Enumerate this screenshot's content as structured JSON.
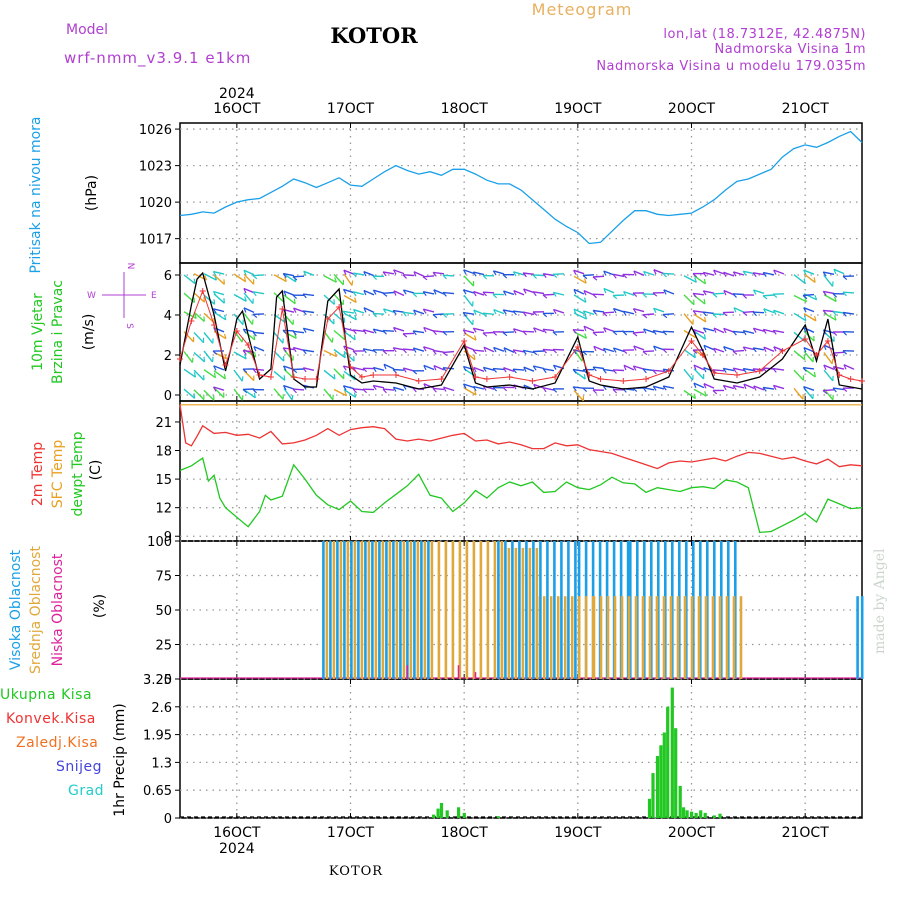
{
  "header": {
    "model_label": "Model",
    "model_name": "wrf-nmm_v3.9.1 e1km",
    "station": "KOTOR",
    "product": "Meteogram",
    "coords": "lon,lat (18.7312E, 42.4875N)",
    "altitude": "Nadmorska Visina 1m",
    "model_altitude": "Nadmorska Visina u modelu 179.035m"
  },
  "top_year": "2024",
  "bottom_year": "2024",
  "footer_station": "KOTOR",
  "watermark": "made by Angel",
  "colors": {
    "pressure": "#1ba0e8",
    "temp2m": "#ee3333",
    "sfc": "#e8a020",
    "dew": "#22c822",
    "high_cloud": "#1ba0e8",
    "mid_cloud": "#e0a83a",
    "low_cloud": "#dd2299",
    "total_precip": "#22c822",
    "conv_precip": "#ee3333",
    "frozen_precip": "#f07020",
    "snow": "#4444dd",
    "hail": "#22cccc",
    "wind_label": "#22c822",
    "wind_speed": "#000000",
    "wind_gust": "#ee3333",
    "compass": "#b040d0",
    "purple_text": "#b040d0",
    "orange_text": "#e8b060"
  },
  "chart_data": [
    {
      "id": "pressure",
      "type": "line",
      "ylabel": "Pritisak na nivou mora",
      "unit": "(hPa)",
      "ylim": [
        1015,
        1026.5
      ],
      "yticks": [
        1017,
        1020,
        1023,
        1026
      ],
      "xticks": [
        "16OCT",
        "17OCT",
        "18OCT",
        "19OCT",
        "20OCT",
        "21OCT"
      ],
      "x_day_offsets": [
        0,
        1,
        2,
        3,
        4,
        5
      ],
      "x_range_days": [
        -0.5,
        5.5
      ],
      "grid": true,
      "series": [
        {
          "x": [
            -0.5,
            -0.4,
            -0.3,
            -0.2,
            -0.1,
            0,
            0.1,
            0.2,
            0.3,
            0.4,
            0.5,
            0.6,
            0.7,
            0.8,
            0.9,
            1.0,
            1.1,
            1.2,
            1.3,
            1.4,
            1.5,
            1.6,
            1.7,
            1.8,
            1.9,
            2.0,
            2.1,
            2.2,
            2.3,
            2.4,
            2.5,
            2.6,
            2.7,
            2.8,
            2.9,
            3.0,
            3.1,
            3.2,
            3.3,
            3.4,
            3.5,
            3.6,
            3.7,
            3.8,
            3.9,
            4.0,
            4.1,
            4.2,
            4.3,
            4.4,
            4.5,
            4.6,
            4.7,
            4.8,
            4.9,
            5.0,
            5.1,
            5.2,
            5.3,
            5.4,
            5.5
          ],
          "y": [
            1018.9,
            1019.0,
            1019.2,
            1019.1,
            1019.6,
            1020.0,
            1020.2,
            1020.3,
            1020.8,
            1021.3,
            1021.9,
            1021.6,
            1021.2,
            1021.6,
            1022.0,
            1021.4,
            1021.3,
            1021.9,
            1022.5,
            1023.0,
            1022.6,
            1022.3,
            1022.5,
            1022.2,
            1022.7,
            1022.7,
            1022.3,
            1021.8,
            1021.5,
            1021.5,
            1021.0,
            1020.2,
            1019.4,
            1018.6,
            1018.0,
            1017.5,
            1016.6,
            1016.7,
            1017.6,
            1018.5,
            1019.3,
            1019.3,
            1019.0,
            1018.9,
            1019.0,
            1019.1,
            1019.6,
            1020.2,
            1021.0,
            1021.7,
            1021.9,
            1022.3,
            1022.7,
            1023.7,
            1024.4,
            1024.7,
            1024.5,
            1024.9,
            1025.4,
            1025.8,
            1024.9
          ]
        }
      ]
    },
    {
      "id": "wind",
      "type": "line",
      "ylabel_1": "10m Vjetar",
      "ylabel_2": "Brzina i Pravac",
      "unit": "(m/s)",
      "compass": {
        "n": "N",
        "s": "S",
        "e": "E",
        "w": "W"
      },
      "ylim": [
        -0.3,
        6.6
      ],
      "yticks": [
        0,
        2,
        4,
        6
      ],
      "grid": true,
      "series": [
        {
          "name": "speed",
          "x": [
            -0.5,
            -0.4,
            -0.35,
            -0.3,
            -0.2,
            -0.1,
            -0.05,
            0,
            0.05,
            0.1,
            0.2,
            0.3,
            0.35,
            0.4,
            0.5,
            0.6,
            0.7,
            0.8,
            0.9,
            0.95,
            1.0,
            1.1,
            1.2,
            1.4,
            1.6,
            1.8,
            2.0,
            2.1,
            2.2,
            2.4,
            2.6,
            2.8,
            3.0,
            3.1,
            3.2,
            3.4,
            3.6,
            3.8,
            4.0,
            4.1,
            4.2,
            4.4,
            4.6,
            4.8,
            5.0,
            5.1,
            5.2,
            5.3,
            5.4,
            5.5
          ],
          "y": [
            1.5,
            4.5,
            5.8,
            6.1,
            4.0,
            1.2,
            2.4,
            3.8,
            4.2,
            3.0,
            0.8,
            1.3,
            4.9,
            5.2,
            0.8,
            0.4,
            0.4,
            4.7,
            5.3,
            3.0,
            1.0,
            0.6,
            0.7,
            0.6,
            0.3,
            0.5,
            2.5,
            0.6,
            0.4,
            0.5,
            0.3,
            0.6,
            2.9,
            0.7,
            0.5,
            0.3,
            0.4,
            0.9,
            3.4,
            2.2,
            0.8,
            0.6,
            0.9,
            1.8,
            3.5,
            1.7,
            3.8,
            0.5,
            0.4,
            0.3
          ]
        },
        {
          "name": "gust",
          "x": [
            -0.5,
            -0.4,
            -0.3,
            -0.2,
            -0.1,
            0,
            0.1,
            0.2,
            0.3,
            0.4,
            0.5,
            0.6,
            0.7,
            0.8,
            0.9,
            1.0,
            1.1,
            1.2,
            1.4,
            1.6,
            1.8,
            2.0,
            2.1,
            2.2,
            2.4,
            2.6,
            2.8,
            3.0,
            3.1,
            3.2,
            3.4,
            3.6,
            3.8,
            4.0,
            4.1,
            4.2,
            4.4,
            4.6,
            4.8,
            5.0,
            5.1,
            5.2,
            5.3,
            5.4,
            5.5
          ],
          "y": [
            1.8,
            3.7,
            5.2,
            3.5,
            1.5,
            3.2,
            2.5,
            1.0,
            0.9,
            4.3,
            0.9,
            0.8,
            0.8,
            3.8,
            4.4,
            1.4,
            0.9,
            1.0,
            1.0,
            0.7,
            0.8,
            2.7,
            0.9,
            0.8,
            0.9,
            0.7,
            0.9,
            2.4,
            1.0,
            0.8,
            0.7,
            0.8,
            1.2,
            2.7,
            2.0,
            1.1,
            1.0,
            1.2,
            2.2,
            2.8,
            2.0,
            2.7,
            1.0,
            0.8,
            0.7
          ]
        }
      ]
    },
    {
      "id": "temperature",
      "type": "line",
      "ylabel_1": "2m Temp",
      "ylabel_2": "SFC Temp",
      "ylabel_3": "dewpt Temp",
      "unit": "(C)",
      "ylim": [
        8.5,
        23.2
      ],
      "yticks": [
        9,
        12,
        15,
        18,
        21
      ],
      "grid": true,
      "series": [
        {
          "name": "2m Temp",
          "x": [
            -0.5,
            -0.45,
            -0.4,
            -0.35,
            -0.3,
            -0.2,
            -0.1,
            0,
            0.1,
            0.2,
            0.3,
            0.4,
            0.5,
            0.6,
            0.7,
            0.8,
            0.9,
            1.0,
            1.1,
            1.2,
            1.3,
            1.4,
            1.5,
            1.6,
            1.7,
            1.8,
            1.9,
            2.0,
            2.1,
            2.2,
            2.3,
            2.4,
            2.5,
            2.6,
            2.7,
            2.8,
            2.9,
            3.0,
            3.1,
            3.2,
            3.3,
            3.4,
            3.5,
            3.6,
            3.7,
            3.8,
            3.9,
            4.0,
            4.1,
            4.2,
            4.3,
            4.4,
            4.5,
            4.6,
            4.7,
            4.8,
            4.9,
            5.0,
            5.1,
            5.2,
            5.3,
            5.4,
            5.5
          ],
          "y": [
            22.8,
            18.8,
            18.5,
            19.5,
            20.6,
            19.8,
            19.9,
            19.6,
            19.7,
            19.3,
            20.0,
            18.7,
            18.8,
            19.1,
            19.6,
            20.3,
            19.6,
            20.2,
            20.4,
            20.5,
            20.3,
            19.2,
            19.0,
            19.2,
            19.0,
            19.3,
            19.6,
            19.8,
            19.0,
            19.1,
            18.7,
            18.9,
            18.6,
            18.2,
            18.2,
            18.8,
            18.5,
            18.6,
            18.1,
            17.9,
            17.7,
            17.3,
            16.9,
            16.5,
            16.1,
            16.7,
            16.9,
            16.8,
            17.0,
            17.2,
            16.9,
            17.4,
            17.8,
            17.7,
            17.4,
            17.1,
            17.3,
            16.9,
            16.6,
            17.1,
            16.3,
            16.5,
            16.4
          ]
        },
        {
          "name": "SFC Temp",
          "x": [
            -0.5,
            5.5
          ],
          "y": [
            22.8,
            22.8
          ]
        },
        {
          "name": "dewpt Temp",
          "x": [
            -0.5,
            -0.4,
            -0.3,
            -0.25,
            -0.2,
            -0.15,
            -0.1,
            0,
            0.1,
            0.2,
            0.25,
            0.3,
            0.4,
            0.5,
            0.6,
            0.7,
            0.8,
            0.9,
            1.0,
            1.1,
            1.2,
            1.3,
            1.4,
            1.5,
            1.6,
            1.7,
            1.8,
            1.9,
            2.0,
            2.1,
            2.2,
            2.3,
            2.4,
            2.5,
            2.6,
            2.7,
            2.8,
            2.9,
            3.0,
            3.1,
            3.2,
            3.3,
            3.4,
            3.5,
            3.6,
            3.7,
            3.8,
            3.9,
            4.0,
            4.1,
            4.2,
            4.3,
            4.4,
            4.5,
            4.6,
            4.7,
            4.8,
            4.9,
            5.0,
            5.1,
            5.2,
            5.3,
            5.4,
            5.5
          ],
          "y": [
            15.9,
            16.4,
            17.2,
            14.8,
            15.4,
            13.0,
            12.0,
            11.0,
            10.0,
            11.6,
            13.3,
            12.8,
            13.2,
            16.5,
            15.0,
            13.3,
            12.3,
            11.8,
            12.7,
            11.6,
            11.5,
            12.5,
            13.4,
            14.3,
            15.5,
            13.3,
            13.0,
            11.6,
            12.5,
            13.8,
            13.0,
            14.1,
            14.7,
            14.3,
            14.7,
            13.6,
            13.7,
            14.7,
            14.1,
            13.9,
            14.4,
            15.2,
            14.6,
            14.5,
            13.6,
            14.1,
            13.9,
            13.7,
            14.1,
            14.2,
            14.0,
            14.9,
            14.7,
            14.1,
            9.4,
            9.5,
            10.1,
            10.7,
            11.4,
            10.5,
            12.9,
            12.4,
            11.9,
            12.0
          ]
        }
      ]
    },
    {
      "id": "clouds",
      "type": "bar",
      "ylabel_1": "Visoka Oblacnost",
      "ylabel_2": "Srednja Oblacnost",
      "ylabel_3": "Niska Oblacnost",
      "unit": "(%)",
      "ylim": [
        0,
        100
      ],
      "yticks": [
        0,
        25,
        50,
        75,
        100
      ],
      "grid": true,
      "series": [
        {
          "name": "Visoka Oblacnost",
          "segments": [
            [
              0.75,
              1.7,
              100
            ],
            [
              2.29,
              3.0,
              100
            ],
            [
              3.0,
              3.45,
              100
            ],
            [
              3.45,
              4.42,
              100
            ],
            [
              5.45,
              5.47,
              60
            ],
            [
              5.49,
              5.5,
              60
            ]
          ]
        },
        {
          "name": "Srednja Oblacnost",
          "segments": [
            [
              0.75,
              2.29,
              100
            ],
            [
              2.29,
              2.6,
              95
            ],
            [
              2.6,
              3.1,
              60
            ],
            [
              3.1,
              4.42,
              60
            ]
          ]
        },
        {
          "name": "Niska Oblacnost",
          "segments": [
            [
              1.5,
              1.55,
              10
            ],
            [
              1.95,
              2.0,
              10
            ],
            [
              2.1,
              2.15,
              5
            ]
          ]
        }
      ]
    },
    {
      "id": "precip",
      "type": "bar",
      "ylabel": "1hr Precip",
      "unit": "(mm)",
      "ylim": [
        0,
        3.25
      ],
      "yticks": [
        0,
        0.65,
        1.3,
        1.95,
        2.6,
        3.25
      ],
      "ytick_labels": [
        "0",
        "0.65",
        "1.3",
        "1.95",
        "2.6",
        "3.25"
      ],
      "legend": [
        "Ukupna Kisa",
        "Konvek.Kisa",
        "Zaledj.Kisa",
        "Snijeg",
        "Grad"
      ],
      "grid": true,
      "series": [
        {
          "name": "Ukupna Kisa",
          "x": [
            1.73,
            1.77,
            1.8,
            1.85,
            1.95,
            2.0,
            2.3,
            3.63,
            3.66,
            3.7,
            3.73,
            3.76,
            3.79,
            3.83,
            3.86,
            3.9,
            3.93,
            3.96,
            4.0,
            4.04,
            4.08,
            4.12,
            4.2,
            4.25
          ],
          "y": [
            0.08,
            0.22,
            0.35,
            0.18,
            0.25,
            0.12,
            0.04,
            0.45,
            1.05,
            1.45,
            1.7,
            2.0,
            2.6,
            3.05,
            2.1,
            0.75,
            0.25,
            0.18,
            0.15,
            0.12,
            0.18,
            0.12,
            0.06,
            0.1
          ]
        }
      ]
    }
  ]
}
